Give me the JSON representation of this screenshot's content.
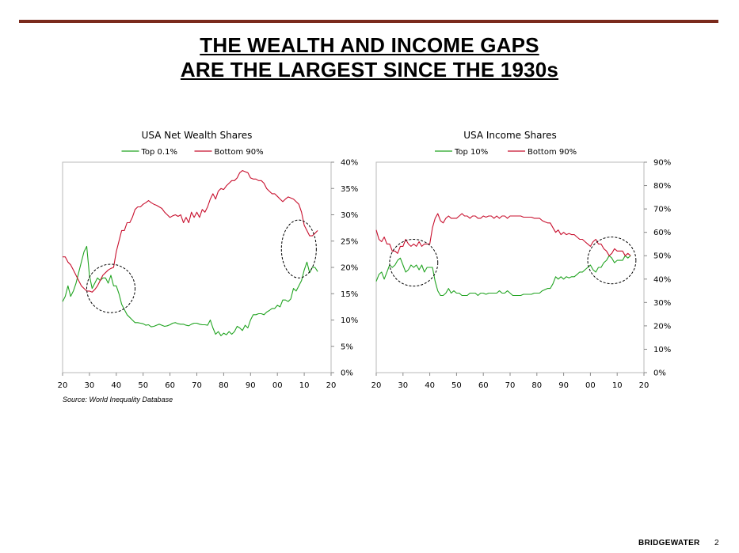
{
  "page": {
    "title_line1": "THE WEALTH AND INCOME GAPS",
    "title_line2": "ARE THE LARGEST SINCE THE 1930s",
    "source": "Source: World Inequality Database",
    "brand": "BRIDGEWATER",
    "page_number": "2"
  },
  "chart_data": [
    {
      "type": "line",
      "title": "USA Net Wealth Shares",
      "x_ticks": [
        1920,
        1930,
        1940,
        1950,
        1960,
        1970,
        1980,
        1990,
        2000,
        2010,
        2020
      ],
      "x_tick_labels": [
        "20",
        "30",
        "40",
        "50",
        "60",
        "70",
        "80",
        "90",
        "00",
        "10",
        "20"
      ],
      "xlim": [
        1920,
        2020
      ],
      "ylim": [
        0,
        40
      ],
      "y_ticks": [
        0,
        5,
        10,
        15,
        20,
        25,
        30,
        35,
        40
      ],
      "y_tick_labels": [
        "0%",
        "5%",
        "10%",
        "15%",
        "20%",
        "25%",
        "30%",
        "35%",
        "40%"
      ],
      "legend": "top",
      "series": [
        {
          "name": "Top 0.1%",
          "color": "#22a422",
          "x": [
            1920,
            1921,
            1922,
            1923,
            1924,
            1925,
            1926,
            1927,
            1928,
            1929,
            1930,
            1931,
            1932,
            1933,
            1934,
            1935,
            1936,
            1937,
            1938,
            1939,
            1940,
            1941,
            1942,
            1943,
            1944,
            1945,
            1946,
            1947,
            1948,
            1949,
            1950,
            1951,
            1952,
            1953,
            1954,
            1955,
            1956,
            1957,
            1958,
            1959,
            1960,
            1961,
            1962,
            1963,
            1964,
            1965,
            1966,
            1967,
            1968,
            1969,
            1970,
            1971,
            1972,
            1973,
            1974,
            1975,
            1976,
            1977,
            1978,
            1979,
            1980,
            1981,
            1982,
            1983,
            1984,
            1985,
            1986,
            1987,
            1988,
            1989,
            1990,
            1991,
            1992,
            1993,
            1994,
            1995,
            1996,
            1997,
            1998,
            1999,
            2000,
            2001,
            2002,
            2003,
            2004,
            2005,
            2006,
            2007,
            2008,
            2009,
            2010,
            2011,
            2012,
            2013,
            2014,
            2015
          ],
          "values": [
            13.5,
            14.5,
            16.5,
            14.5,
            15.5,
            17,
            19,
            21,
            23,
            24,
            18.5,
            16,
            17,
            18,
            17.5,
            18,
            18,
            17,
            18.5,
            16.5,
            16.5,
            15,
            13,
            12,
            11,
            10.5,
            10,
            9.5,
            9.5,
            9.4,
            9.3,
            9.0,
            9.1,
            8.7,
            8.8,
            9.0,
            9.2,
            9.0,
            8.8,
            8.9,
            9.1,
            9.4,
            9.5,
            9.3,
            9.2,
            9.2,
            9.0,
            8.9,
            9.2,
            9.4,
            9.4,
            9.2,
            9.1,
            9.1,
            9.0,
            10.0,
            8.5,
            7.3,
            7.8,
            7.0,
            7.5,
            7.2,
            7.8,
            7.3,
            7.8,
            8.8,
            8.5,
            8.0,
            9.0,
            8.5,
            10.0,
            11.0,
            11.0,
            11.2,
            11.2,
            11.0,
            11.5,
            11.8,
            12.2,
            12.2,
            12.8,
            12.5,
            13.8,
            13.8,
            13.5,
            14.0,
            16.0,
            15.5,
            16.5,
            17.5,
            19.5,
            21.0,
            19.0,
            20.0,
            20.0,
            19.2
          ]
        },
        {
          "name": "Bottom 90%",
          "color": "#c8102e",
          "x": [
            1920,
            1921,
            1922,
            1923,
            1924,
            1925,
            1926,
            1927,
            1928,
            1929,
            1930,
            1931,
            1932,
            1933,
            1934,
            1935,
            1936,
            1937,
            1938,
            1939,
            1940,
            1941,
            1942,
            1943,
            1944,
            1945,
            1946,
            1947,
            1948,
            1949,
            1950,
            1951,
            1952,
            1953,
            1954,
            1955,
            1956,
            1957,
            1958,
            1959,
            1960,
            1961,
            1962,
            1963,
            1964,
            1965,
            1966,
            1967,
            1968,
            1969,
            1970,
            1971,
            1972,
            1973,
            1974,
            1975,
            1976,
            1977,
            1978,
            1979,
            1980,
            1981,
            1982,
            1983,
            1984,
            1985,
            1986,
            1987,
            1988,
            1989,
            1990,
            1991,
            1992,
            1993,
            1994,
            1995,
            1996,
            1997,
            1998,
            1999,
            2000,
            2001,
            2002,
            2003,
            2004,
            2005,
            2006,
            2007,
            2008,
            2009,
            2010,
            2011,
            2012,
            2013,
            2014,
            2015
          ],
          "values": [
            22,
            22,
            21,
            20.5,
            19.5,
            18.5,
            17.5,
            16.5,
            16,
            15.5,
            15.5,
            15.3,
            15.8,
            16.5,
            17.5,
            18.5,
            19,
            19.5,
            19.8,
            20,
            23,
            25,
            27,
            27,
            28.5,
            28.5,
            29.5,
            31,
            31.5,
            31.5,
            32,
            32.3,
            32.7,
            32.3,
            32,
            31.8,
            31.5,
            31.2,
            30.5,
            30,
            29.5,
            29.8,
            30,
            29.7,
            30,
            28.5,
            29.5,
            28.5,
            30.5,
            29.5,
            30.5,
            29.5,
            31,
            30.5,
            31.5,
            33,
            34,
            33,
            34.5,
            35,
            34.8,
            35.5,
            36,
            36.5,
            36.5,
            37,
            38,
            38.4,
            38.2,
            38,
            37,
            36.8,
            36.8,
            36.5,
            36.5,
            36,
            35,
            34.5,
            34,
            34,
            33.5,
            33,
            32.5,
            33,
            33.4,
            33.2,
            33,
            32.5,
            32,
            30.5,
            28,
            27,
            26,
            26,
            26.5,
            27
          ]
        }
      ]
    },
    {
      "type": "line",
      "title": "USA Income Shares",
      "x_ticks": [
        1920,
        1930,
        1940,
        1950,
        1960,
        1970,
        1980,
        1990,
        2000,
        2010,
        2020
      ],
      "x_tick_labels": [
        "20",
        "30",
        "40",
        "50",
        "60",
        "70",
        "80",
        "90",
        "00",
        "10",
        "20"
      ],
      "xlim": [
        1920,
        2020
      ],
      "ylim": [
        0,
        90
      ],
      "y_ticks": [
        0,
        10,
        20,
        30,
        40,
        50,
        60,
        70,
        80,
        90
      ],
      "y_tick_labels": [
        "0%",
        "10%",
        "20%",
        "30%",
        "40%",
        "50%",
        "60%",
        "70%",
        "80%",
        "90%"
      ],
      "legend": "top",
      "series": [
        {
          "name": "Top 10%",
          "color": "#22a422",
          "x": [
            1920,
            1921,
            1922,
            1923,
            1924,
            1925,
            1926,
            1927,
            1928,
            1929,
            1930,
            1931,
            1932,
            1933,
            1934,
            1935,
            1936,
            1937,
            1938,
            1939,
            1940,
            1941,
            1942,
            1943,
            1944,
            1945,
            1946,
            1947,
            1948,
            1949,
            1950,
            1951,
            1952,
            1953,
            1954,
            1955,
            1956,
            1957,
            1958,
            1959,
            1960,
            1961,
            1962,
            1963,
            1964,
            1965,
            1966,
            1967,
            1968,
            1969,
            1970,
            1971,
            1972,
            1973,
            1974,
            1975,
            1976,
            1977,
            1978,
            1979,
            1980,
            1981,
            1982,
            1983,
            1984,
            1985,
            1986,
            1987,
            1988,
            1989,
            1990,
            1991,
            1992,
            1993,
            1994,
            1995,
            1996,
            1997,
            1998,
            1999,
            2000,
            2001,
            2002,
            2003,
            2004,
            2005,
            2006,
            2007,
            2008,
            2009,
            2010,
            2011,
            2012,
            2013,
            2014,
            2015
          ],
          "values": [
            39,
            42,
            43,
            40,
            43,
            46,
            45,
            46,
            48,
            49,
            46,
            43,
            44,
            46,
            45,
            46,
            44,
            46,
            43,
            45,
            45,
            45,
            39,
            35,
            33,
            33,
            34,
            36,
            34,
            35,
            34,
            34,
            33,
            33,
            33,
            34,
            34,
            34,
            33,
            34,
            34,
            33.5,
            34,
            34,
            34,
            34,
            35,
            34,
            34,
            35,
            34,
            33,
            33,
            33,
            33,
            33.5,
            33.5,
            33.5,
            33.5,
            34,
            34,
            34,
            35,
            35.5,
            36,
            36,
            38,
            41,
            40,
            41,
            40,
            41,
            40.5,
            41,
            41,
            42,
            43,
            43,
            44,
            45,
            46,
            44,
            43,
            45,
            45,
            47,
            48,
            50,
            49,
            47,
            48,
            48,
            48,
            50,
            49,
            50
          ]
        },
        {
          "name": "Bottom 90%",
          "color": "#c8102e",
          "x": [
            1920,
            1921,
            1922,
            1923,
            1924,
            1925,
            1926,
            1927,
            1928,
            1929,
            1930,
            1931,
            1932,
            1933,
            1934,
            1935,
            1936,
            1937,
            1938,
            1939,
            1940,
            1941,
            1942,
            1943,
            1944,
            1945,
            1946,
            1947,
            1948,
            1949,
            1950,
            1951,
            1952,
            1953,
            1954,
            1955,
            1956,
            1957,
            1958,
            1959,
            1960,
            1961,
            1962,
            1963,
            1964,
            1965,
            1966,
            1967,
            1968,
            1969,
            1970,
            1971,
            1972,
            1973,
            1974,
            1975,
            1976,
            1977,
            1978,
            1979,
            1980,
            1981,
            1982,
            1983,
            1984,
            1985,
            1986,
            1987,
            1988,
            1989,
            1990,
            1991,
            1992,
            1993,
            1994,
            1995,
            1996,
            1997,
            1998,
            1999,
            2000,
            2001,
            2002,
            2003,
            2004,
            2005,
            2006,
            2007,
            2008,
            2009,
            2010,
            2011,
            2012,
            2013,
            2014,
            2015
          ],
          "values": [
            61,
            57,
            56,
            58,
            55,
            55,
            52,
            52,
            51,
            54,
            54,
            57,
            55,
            54,
            55,
            54,
            56,
            54,
            55,
            55,
            55,
            62,
            66,
            68,
            65,
            64,
            66,
            67,
            66,
            66,
            66,
            67,
            68,
            67,
            67,
            66,
            67,
            67,
            66,
            66,
            67,
            66.5,
            67,
            67,
            66,
            67,
            66,
            67,
            67,
            66,
            67,
            67,
            67,
            67,
            67,
            66.5,
            66.5,
            66.5,
            66.5,
            66,
            66,
            66,
            65,
            64.5,
            64,
            64,
            62,
            60,
            61,
            59,
            60,
            59,
            59.5,
            59,
            59,
            58,
            57,
            57,
            56,
            55,
            54,
            56,
            57,
            55,
            55,
            53,
            52,
            50,
            51,
            53,
            52,
            52,
            52,
            50,
            51,
            50
          ]
        }
      ]
    }
  ]
}
